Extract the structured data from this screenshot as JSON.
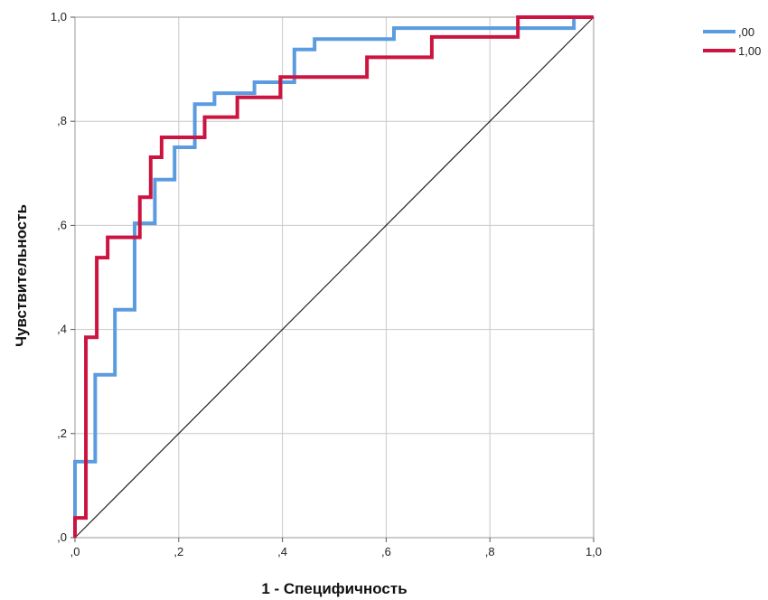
{
  "chart_data": {
    "type": "line",
    "title": "",
    "xlabel": "1 - Специфичность",
    "ylabel": "Чувствительность",
    "xlim": [
      0,
      1
    ],
    "ylim": [
      0,
      1
    ],
    "grid": true,
    "legend_position": "top-right",
    "x_ticks": [
      {
        "value": 0.0,
        "label": ",0"
      },
      {
        "value": 0.2,
        "label": ",2"
      },
      {
        "value": 0.4,
        "label": ",4"
      },
      {
        "value": 0.6,
        "label": ",6"
      },
      {
        "value": 0.8,
        "label": ",8"
      },
      {
        "value": 1.0,
        "label": "1,0"
      }
    ],
    "y_ticks": [
      {
        "value": 0.0,
        "label": ",0"
      },
      {
        "value": 0.2,
        "label": ",2"
      },
      {
        "value": 0.4,
        "label": ",4"
      },
      {
        "value": 0.6,
        "label": ",6"
      },
      {
        "value": 0.8,
        "label": ",8"
      },
      {
        "value": 1.0,
        "label": "1,0"
      }
    ],
    "series": [
      {
        "name": ",00",
        "color": "#5b9be0",
        "points": [
          [
            0.0,
            0.0
          ],
          [
            0.0,
            0.146
          ],
          [
            0.039,
            0.146
          ],
          [
            0.039,
            0.313
          ],
          [
            0.077,
            0.313
          ],
          [
            0.077,
            0.438
          ],
          [
            0.115,
            0.438
          ],
          [
            0.115,
            0.604
          ],
          [
            0.154,
            0.604
          ],
          [
            0.154,
            0.688
          ],
          [
            0.192,
            0.688
          ],
          [
            0.192,
            0.75
          ],
          [
            0.231,
            0.75
          ],
          [
            0.231,
            0.833
          ],
          [
            0.269,
            0.833
          ],
          [
            0.269,
            0.854
          ],
          [
            0.346,
            0.854
          ],
          [
            0.346,
            0.875
          ],
          [
            0.423,
            0.875
          ],
          [
            0.423,
            0.938
          ],
          [
            0.462,
            0.938
          ],
          [
            0.462,
            0.958
          ],
          [
            0.615,
            0.958
          ],
          [
            0.615,
            0.979
          ],
          [
            0.962,
            0.979
          ],
          [
            0.962,
            1.0
          ],
          [
            1.0,
            1.0
          ]
        ]
      },
      {
        "name": "1,00",
        "color": "#cc1440",
        "points": [
          [
            0.0,
            0.0
          ],
          [
            0.0,
            0.038
          ],
          [
            0.021,
            0.038
          ],
          [
            0.021,
            0.385
          ],
          [
            0.042,
            0.385
          ],
          [
            0.042,
            0.538
          ],
          [
            0.063,
            0.538
          ],
          [
            0.063,
            0.577
          ],
          [
            0.125,
            0.577
          ],
          [
            0.125,
            0.654
          ],
          [
            0.146,
            0.654
          ],
          [
            0.146,
            0.731
          ],
          [
            0.167,
            0.731
          ],
          [
            0.167,
            0.769
          ],
          [
            0.25,
            0.769
          ],
          [
            0.25,
            0.808
          ],
          [
            0.313,
            0.808
          ],
          [
            0.313,
            0.846
          ],
          [
            0.396,
            0.846
          ],
          [
            0.396,
            0.885
          ],
          [
            0.563,
            0.885
          ],
          [
            0.563,
            0.923
          ],
          [
            0.688,
            0.923
          ],
          [
            0.688,
            0.962
          ],
          [
            0.854,
            0.962
          ],
          [
            0.854,
            1.0
          ],
          [
            1.0,
            1.0
          ]
        ]
      }
    ],
    "reference_line": {
      "color": "#222222",
      "points": [
        [
          0.0,
          0.0
        ],
        [
          1.0,
          1.0
        ]
      ]
    }
  }
}
